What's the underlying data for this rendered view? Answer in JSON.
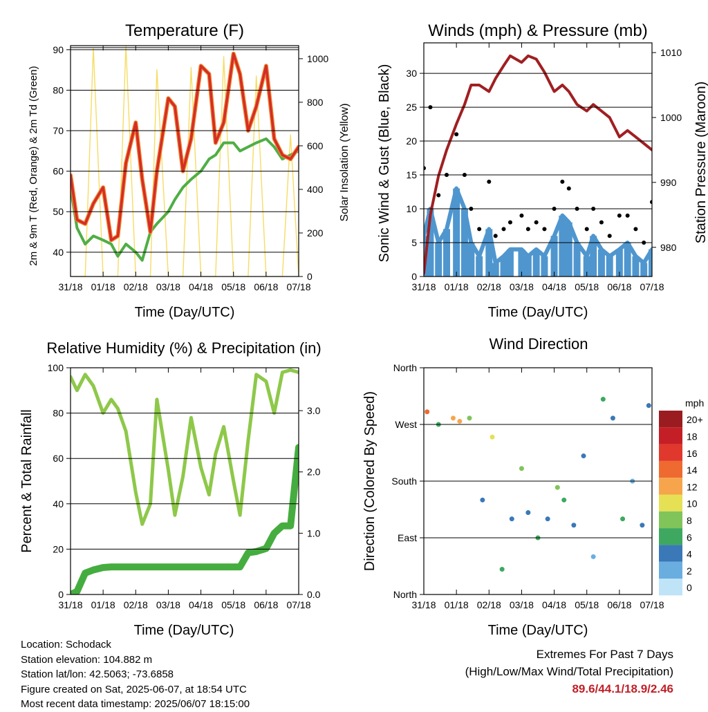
{
  "x_tick_labels": [
    "31/18",
    "01/18",
    "02/18",
    "03/18",
    "04/18",
    "05/18",
    "06/18",
    "07/18"
  ],
  "panels": {
    "temperature": {
      "title": "Temperature (F)",
      "xlabel": "Time (Day/UTC)",
      "ylabel": "2m & 9m T (Red, Orange) & 2m Td (Green)",
      "ylabel_right": "Solar Insolation (Yellow)",
      "yticks": [
        "40",
        "50",
        "60",
        "70",
        "80",
        "90"
      ],
      "yticks_right": [
        "0",
        "200",
        "400",
        "600",
        "800",
        "1000"
      ]
    },
    "winds": {
      "title": "Winds (mph) & Pressure (mb)",
      "xlabel": "Time (Day/UTC)",
      "ylabel": "Sonic Wind & Gust (Blue, Black)",
      "ylabel_right": "Station Pressure (Maroon)",
      "yticks": [
        "0",
        "5",
        "10",
        "15",
        "20",
        "25",
        "30"
      ],
      "yticks_right": [
        "980",
        "990",
        "1000",
        "1010"
      ]
    },
    "humidity": {
      "title": "Relative Humidity (%) & Precipitation (in)",
      "xlabel": "Time (Day/UTC)",
      "ylabel": "Percent & Total Rainfall",
      "yticks": [
        "0",
        "20",
        "40",
        "60",
        "80",
        "100"
      ],
      "yticks_right": [
        "0.0",
        "1.0",
        "2.0",
        "3.0"
      ]
    },
    "direction": {
      "title": "Wind Direction",
      "xlabel": "Time (Day/UTC)",
      "ylabel": "Direction (Colored By Speed)",
      "yticks": [
        "North",
        "East",
        "South",
        "West",
        "North"
      ],
      "legend_title": "mph",
      "legend_labels": [
        "20+",
        "18",
        "16",
        "14",
        "12",
        "10",
        "8",
        "6",
        "4",
        "2",
        "0"
      ],
      "legend_colors": [
        "#9b1c20",
        "#c41e26",
        "#e0382c",
        "#ee6a30",
        "#f7a54c",
        "#e6e055",
        "#80c45a",
        "#3ea860",
        "#3a78b8",
        "#6aaee0",
        "#bfe3f7"
      ]
    }
  },
  "info": {
    "location": "Location: Schodack",
    "elevation": "Station elevation: 104.882 m",
    "latlon": "Station lat/lon: 42.5063; -73.6858",
    "created": "Figure created on Sat, 2025-06-07, at 18:54 UTC",
    "recent": "Most recent data timestamp: 2025/06/07 18:15:00"
  },
  "extremes": {
    "title": "Extremes For Past 7 Days",
    "subtitle": "(High/Low/Max Wind/Total Precipitation)",
    "values": "89.6/44.1/18.9/2.46"
  },
  "chart_data": [
    {
      "type": "line",
      "title": "Temperature (F)",
      "xlabel": "Time (Day/UTC)",
      "ylabel": "2m & 9m T (Red, Orange) & 2m Td (Green)",
      "ylabel_right": "Solar Insolation (Yellow)",
      "x": [
        0.0,
        0.2,
        0.45,
        0.7,
        1.0,
        1.25,
        1.45,
        1.7,
        2.0,
        2.2,
        2.45,
        2.65,
        3.0,
        3.2,
        3.45,
        3.7,
        4.0,
        4.25,
        4.45,
        4.7,
        5.0,
        5.2,
        5.45,
        5.7,
        6.0,
        6.25,
        6.5,
        6.75,
        7.0
      ],
      "ylim": [
        34,
        91
      ],
      "ylim_right": [
        0,
        1060
      ],
      "series": [
        {
          "values": [
            59,
            48,
            47,
            52,
            56,
            43,
            44,
            62,
            72,
            58,
            45,
            60,
            78,
            76,
            60,
            68,
            86,
            84,
            67,
            72,
            89,
            84,
            70,
            76,
            86,
            68,
            64,
            63,
            66
          ]
        },
        {
          "values": [
            56,
            46,
            42,
            44,
            43,
            42,
            39,
            42,
            40,
            38,
            45,
            47,
            50,
            53,
            56,
            58,
            60,
            63,
            64,
            67,
            67,
            65,
            66,
            67,
            68,
            66,
            63,
            64,
            65
          ]
        },
        {
          "values": [
            0,
            0,
            0,
            1050,
            0,
            0,
            0,
            1060,
            0,
            0,
            0,
            950,
            0,
            0,
            0,
            960,
            0,
            0,
            0,
            1010,
            0,
            0,
            0,
            920,
            0,
            0,
            0,
            650,
            0
          ]
        }
      ]
    },
    {
      "type": "line",
      "title": "Winds (mph) & Pressure (mb)",
      "xlabel": "Time (Day/UTC)",
      "ylabel": "Sonic Wind & Gust (Blue, Black)",
      "ylabel_right": "Station Pressure (Maroon)",
      "x": [
        0.0,
        0.2,
        0.45,
        0.7,
        1.0,
        1.25,
        1.45,
        1.7,
        2.0,
        2.2,
        2.45,
        2.65,
        3.0,
        3.2,
        3.45,
        3.7,
        4.0,
        4.25,
        4.45,
        4.7,
        5.0,
        5.2,
        5.45,
        5.7,
        6.0,
        6.25,
        6.5,
        6.75,
        7.0
      ],
      "ylim": [
        0,
        34.5
      ],
      "ylim_right": [
        975.5,
        1011.5
      ],
      "series": [
        {
          "values": [
            6,
            10,
            5,
            7,
            13,
            10,
            5,
            3,
            7,
            2,
            3,
            4,
            4,
            3,
            4,
            3,
            6,
            9,
            8,
            5,
            3,
            6,
            4,
            3,
            4,
            5,
            3,
            2,
            4
          ]
        },
        {
          "values": [
            16,
            25,
            12,
            15,
            21,
            15,
            10,
            7,
            14,
            6,
            7,
            8,
            9,
            7,
            8,
            7,
            10,
            14,
            13,
            10,
            7,
            10,
            8,
            6,
            9,
            9,
            7,
            5,
            11
          ]
        },
        {
          "values": [
            976,
            985,
            991,
            995,
            999,
            1002,
            1005,
            1005,
            1004,
            1006,
            1008,
            1009.5,
            1008.5,
            1009.5,
            1009,
            1007,
            1004,
            1005,
            1004,
            1002,
            1001,
            1002,
            1001,
            1000,
            997,
            998,
            997,
            996,
            995
          ]
        }
      ]
    },
    {
      "type": "line",
      "title": "Relative Humidity (%) & Precipitation (in)",
      "xlabel": "Time (Day/UTC)",
      "ylabel": "Percent & Total Rainfall",
      "x": [
        0.0,
        0.2,
        0.45,
        0.7,
        1.0,
        1.25,
        1.45,
        1.7,
        2.0,
        2.2,
        2.45,
        2.65,
        3.0,
        3.2,
        3.45,
        3.7,
        4.0,
        4.25,
        4.45,
        4.7,
        5.0,
        5.2,
        5.45,
        5.7,
        6.0,
        6.25,
        6.5,
        6.75,
        7.0
      ],
      "ylim": [
        0,
        100
      ],
      "ylim_right": [
        0,
        3.7
      ],
      "series": [
        {
          "values": [
            96,
            90,
            97,
            92,
            80,
            86,
            82,
            72,
            45,
            31,
            40,
            86,
            55,
            35,
            52,
            78,
            56,
            44,
            62,
            74,
            50,
            35,
            68,
            97,
            94,
            80,
            98,
            99,
            98
          ]
        },
        {
          "values": [
            0,
            0.05,
            0.35,
            0.4,
            0.44,
            0.45,
            0.45,
            0.45,
            0.45,
            0.45,
            0.45,
            0.45,
            0.45,
            0.45,
            0.45,
            0.45,
            0.45,
            0.45,
            0.45,
            0.45,
            0.45,
            0.45,
            0.68,
            0.7,
            0.75,
            1.0,
            1.12,
            1.12,
            2.4
          ]
        }
      ]
    },
    {
      "type": "scatter",
      "title": "Wind Direction",
      "xlabel": "Time (Day/UTC)",
      "ylabel": "Direction (Colored By Speed)",
      "ylim": [
        0,
        360
      ],
      "x": [
        0.1,
        0.45,
        0.9,
        1.1,
        1.4,
        1.8,
        2.1,
        2.4,
        2.7,
        3.0,
        3.2,
        3.5,
        3.8,
        4.1,
        4.3,
        4.6,
        4.9,
        5.2,
        5.5,
        5.8,
        6.1,
        6.4,
        6.7,
        6.9
      ],
      "y": [
        290,
        270,
        280,
        275,
        280,
        150,
        250,
        40,
        120,
        200,
        130,
        90,
        120,
        170,
        150,
        110,
        220,
        60,
        310,
        280,
        120,
        180,
        110,
        300
      ],
      "speed": [
        14,
        6,
        12,
        12,
        8,
        3,
        10,
        5,
        3,
        7,
        4,
        6,
        3,
        8,
        6,
        3,
        4,
        2,
        6,
        4,
        5,
        2,
        3,
        4
      ]
    }
  ]
}
